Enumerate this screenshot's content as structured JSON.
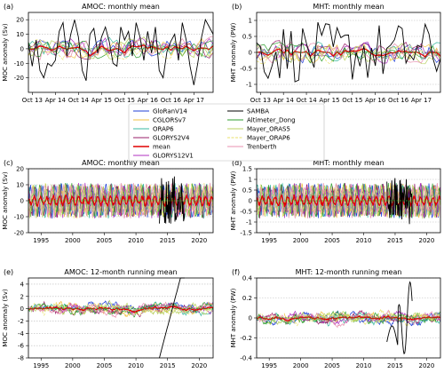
{
  "colors": {
    "GloRanV14": "#1f3fd6",
    "CGLORSv7": "#f0c040",
    "ORAP6": "#39b8a0",
    "GLORYS2V4": "#9a1f6a",
    "mean": "#e00000",
    "GLORYS12V1": "#b030c0",
    "SAMBA": "#000000",
    "Altimeter_Dong": "#2e9e2e",
    "Mayer_ORAS5": "#b8d060",
    "Mayer_ORAP6": "#e8e06a",
    "Trenberth": "#e890b0",
    "zero_line": "#2ca02c",
    "grid": "#bbbbbb"
  },
  "legend": {
    "left": [
      "GloRanV14",
      "CGLORSv7",
      "ORAP6",
      "GLORYS2V4",
      "mean",
      "GLORYS12V1"
    ],
    "right": [
      "SAMBA",
      "Altimeter_Dong",
      "Mayer_ORAS5",
      "Mayer_ORAP6",
      "Trenberth"
    ]
  },
  "chart_data": [
    {
      "type": "line",
      "panel": "(a)",
      "title": "AMOC: monthly mean",
      "ylabel": "MOC anomaly (Sv)",
      "ylim": [
        -30,
        25
      ],
      "yticks": [
        -20,
        -10,
        0,
        10,
        20
      ],
      "x_tick_labels": [
        "Oct 13",
        "Apr 14",
        "Oct 14",
        "Apr 15",
        "Oct 15",
        "Apr 16",
        "Oct 16",
        "Apr 17"
      ],
      "x_range": [
        "2013-09",
        "2017-09"
      ],
      "samba_values": [
        4,
        -12,
        6,
        -15,
        -20,
        -10,
        -12,
        -8,
        12,
        18,
        -5,
        10,
        20,
        8,
        -15,
        -22,
        10,
        14,
        -3,
        8,
        15,
        5,
        -10,
        -12,
        15,
        6,
        12,
        -5,
        18,
        8,
        -8,
        12,
        -3,
        15,
        -15,
        -20,
        -2,
        5,
        10,
        -8,
        18,
        6,
        -12,
        -25,
        -10,
        8,
        20,
        15,
        10
      ]
    },
    {
      "type": "line",
      "panel": "(b)",
      "title": "MHT: monthly mean",
      "ylabel": "MHT anomaly (PW)",
      "ylim": [
        -1.25,
        1.25
      ],
      "yticks": [
        -1,
        -0.5,
        0,
        0.5,
        1
      ],
      "x_tick_labels": [
        "Oct 13",
        "Apr 14",
        "Oct 14",
        "Apr 15",
        "Oct 15",
        "Apr 16",
        "Oct 16",
        "Apr 17"
      ],
      "x_range": [
        "2013-09",
        "2017-09"
      ]
    },
    {
      "type": "line",
      "panel": "(c)",
      "title": "AMOC: monthly mean",
      "ylabel": "MOC anomaly (Sv)",
      "ylim": [
        -20,
        20
      ],
      "yticks": [
        -20,
        -10,
        0,
        10,
        20
      ],
      "x_tick_labels": [
        "1995",
        "2000",
        "2005",
        "2010",
        "2015",
        "2020"
      ],
      "x_range": [
        1993,
        2022.2
      ]
    },
    {
      "type": "line",
      "panel": "(d)",
      "title": "MHT: monthly mean",
      "ylabel": "MHT anomaly (PW)",
      "ylim": [
        -1.5,
        1.5
      ],
      "yticks": [
        -1.5,
        -1,
        -0.5,
        0,
        0.5,
        1,
        1.5
      ],
      "x_tick_labels": [
        "1995",
        "2000",
        "2005",
        "2010",
        "2015",
        "2020"
      ],
      "x_range": [
        1993,
        2022.2
      ]
    },
    {
      "type": "line",
      "panel": "(e)",
      "title": "AMOC: 12-month running mean",
      "ylabel": "MOC anomaly (Sv)",
      "ylim": [
        -8,
        5
      ],
      "yticks": [
        -8,
        -6,
        -4,
        -2,
        0,
        2,
        4
      ],
      "x_tick_labels": [
        "1995",
        "2000",
        "2005",
        "2010",
        "2015",
        "2020"
      ],
      "x_range": [
        1993,
        2022.2
      ]
    },
    {
      "type": "line",
      "panel": "(f)",
      "title": "MHT: 12-month running mean",
      "ylabel": "MHT anomaly (PW)",
      "ylim": [
        -0.4,
        0.4
      ],
      "yticks": [
        -0.4,
        -0.2,
        0,
        0.2,
        0.4
      ],
      "x_tick_labels": [
        "1995",
        "2000",
        "2005",
        "2010",
        "2015",
        "2020"
      ],
      "x_range": [
        1993,
        2022.2
      ]
    }
  ]
}
